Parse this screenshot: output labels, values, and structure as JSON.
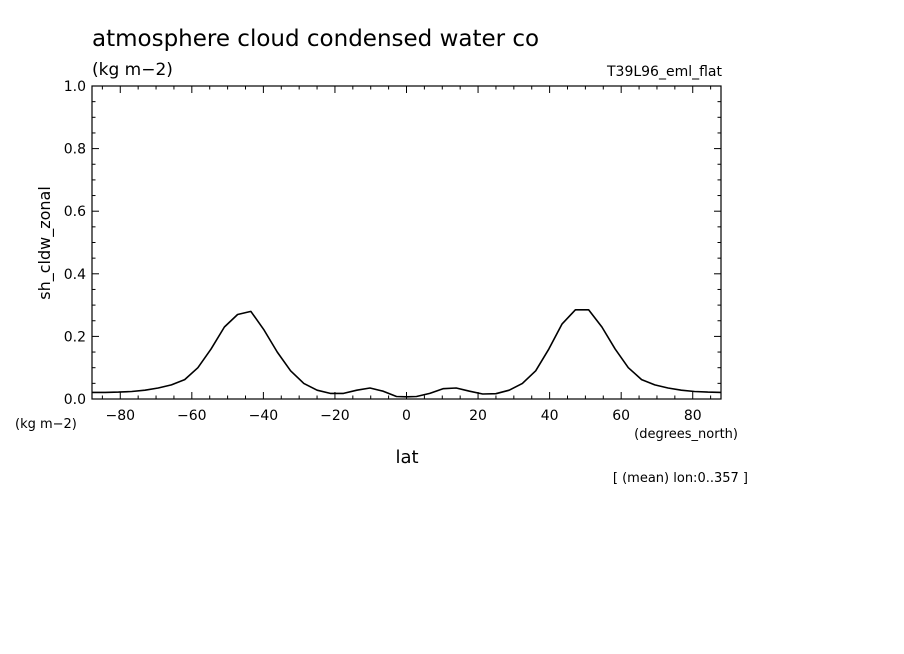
{
  "header": {
    "title": "atmosphere cloud condensed water co",
    "units": "(kg m−2)",
    "run_label": "T39L96_eml_flat"
  },
  "axes": {
    "y_units_corner": "(kg m−2)",
    "x_units": "(degrees_north)",
    "footer_note": "[ (mean) lon:0..357 ]"
  },
  "chart_data": {
    "type": "line",
    "xlabel": "lat",
    "ylabel": "sh_cldw_zonal",
    "xlim": [
      -87.9,
      87.9
    ],
    "ylim": [
      0,
      1
    ],
    "x_ticks": [
      -80,
      -60,
      -40,
      -20,
      0,
      20,
      40,
      60,
      80
    ],
    "y_ticks": [
      0.0,
      0.2,
      0.4,
      0.6,
      0.8,
      1.0
    ],
    "x_tick_labels": [
      "−80",
      "−60",
      "−40",
      "−20",
      "0",
      "20",
      "40",
      "60",
      "80"
    ],
    "y_tick_labels": [
      "0.0",
      "0.2",
      "0.4",
      "0.6",
      "0.8",
      "1.0"
    ],
    "grid": false,
    "series": [
      {
        "x": [
          -87.9,
          -84.2,
          -80.5,
          -76.8,
          -73.1,
          -69.4,
          -65.7,
          -62.0,
          -58.3,
          -54.6,
          -50.9,
          -47.2,
          -43.5,
          -39.8,
          -36.1,
          -32.4,
          -28.7,
          -25.0,
          -21.3,
          -17.6,
          -13.9,
          -10.2,
          -6.5,
          -2.8,
          0.0,
          2.8,
          6.5,
          10.2,
          13.9,
          17.6,
          21.3,
          25.0,
          28.7,
          32.4,
          36.1,
          39.8,
          43.5,
          47.2,
          50.9,
          54.6,
          58.3,
          62.0,
          65.7,
          69.4,
          73.1,
          76.8,
          80.5,
          84.2,
          87.9
        ],
        "y": [
          0.021,
          0.021,
          0.022,
          0.024,
          0.028,
          0.035,
          0.045,
          0.062,
          0.1,
          0.16,
          0.23,
          0.27,
          0.28,
          0.22,
          0.15,
          0.09,
          0.05,
          0.028,
          0.018,
          0.018,
          0.028,
          0.035,
          0.025,
          0.008,
          0.007,
          0.008,
          0.018,
          0.033,
          0.035,
          0.025,
          0.016,
          0.017,
          0.028,
          0.05,
          0.09,
          0.16,
          0.24,
          0.285,
          0.285,
          0.23,
          0.16,
          0.1,
          0.062,
          0.045,
          0.035,
          0.028,
          0.024,
          0.022,
          0.021
        ]
      }
    ]
  }
}
